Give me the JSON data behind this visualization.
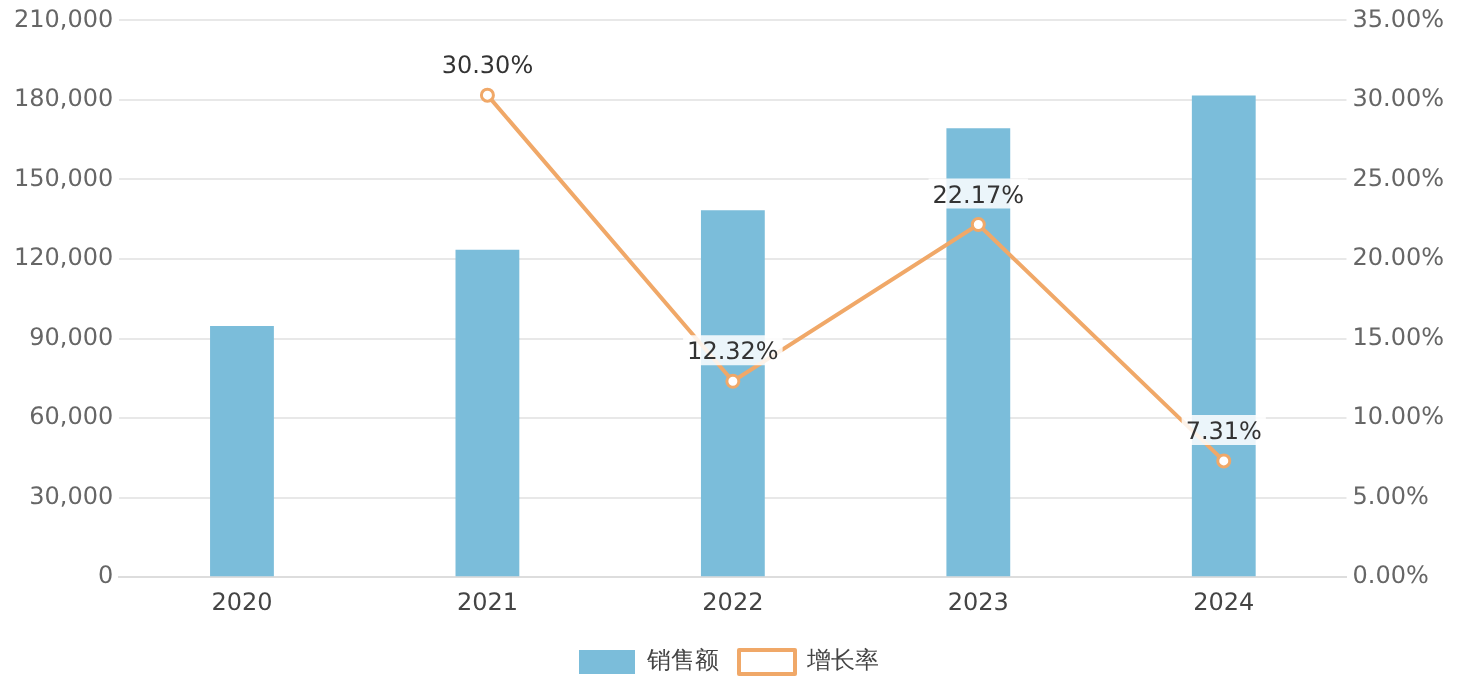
{
  "chart_data": {
    "type": "bar",
    "categories": [
      "2020",
      "2021",
      "2022",
      "2023",
      "2024"
    ],
    "series": [
      {
        "name": "销售额",
        "color": "#7bbdda",
        "values": [
          94700,
          123500,
          138400,
          169300,
          181700
        ]
      },
      {
        "name": "增长率",
        "type": "line",
        "axis": "y2",
        "color": "#f0a868",
        "marker": "circle",
        "values": [
          null,
          30.3,
          12.32,
          22.17,
          7.31
        ],
        "value_labels": [
          null,
          "30.30%",
          "12.32%",
          "22.17%",
          "7.31%"
        ]
      }
    ],
    "ylim": [
      0,
      210000
    ],
    "yticks": [
      {
        "value": 0,
        "label": "0"
      },
      {
        "value": 30000,
        "label": "30,000"
      },
      {
        "value": 60000,
        "label": "60,000"
      },
      {
        "value": 90000,
        "label": "90,000"
      },
      {
        "value": 120000,
        "label": "120,000"
      },
      {
        "value": 150000,
        "label": "150,000"
      },
      {
        "value": 180000,
        "label": "180,000"
      },
      {
        "value": 210000,
        "label": "210,000"
      }
    ],
    "y2lim": [
      0,
      35
    ],
    "y2ticks": [
      {
        "value": 0,
        "label": "0.00%"
      },
      {
        "value": 5,
        "label": "5.00%"
      },
      {
        "value": 10,
        "label": "10.00%"
      },
      {
        "value": 15,
        "label": "15.00%"
      },
      {
        "value": 20,
        "label": "20.00%"
      },
      {
        "value": 25,
        "label": "25.00%"
      },
      {
        "value": 30,
        "label": "30.00%"
      },
      {
        "value": 35,
        "label": "35.00%"
      }
    ],
    "grid": "y",
    "legend": "bottom"
  }
}
